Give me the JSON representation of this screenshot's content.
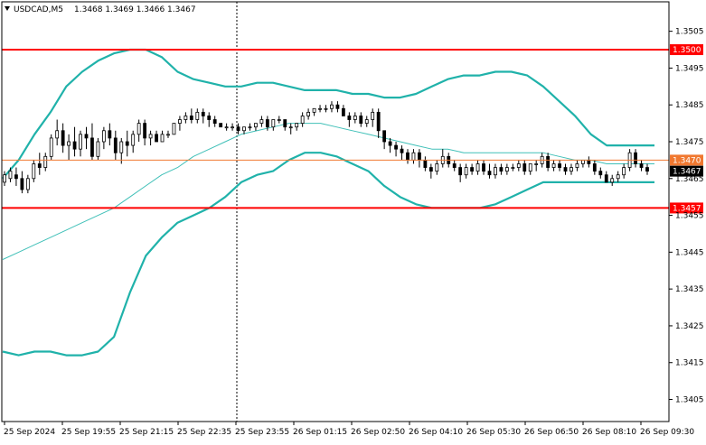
{
  "header": {
    "symbol": "USDCAD,M5",
    "ohlc": "1.3468 1.3469 1.3466 1.3467",
    "arrow_icon": "triangle-down-icon"
  },
  "chart_data": {
    "type": "candlestick",
    "ylim": [
      1.3399,
      1.3513
    ],
    "y_ticks": [
      "1.3505",
      "1.3495",
      "1.3485",
      "1.3475",
      "1.3465",
      "1.3455",
      "1.3445",
      "1.3435",
      "1.3425",
      "1.3415",
      "1.3405"
    ],
    "y_tick_values": [
      1.3505,
      1.3495,
      1.3485,
      1.3475,
      1.3465,
      1.3455,
      1.3445,
      1.3435,
      1.3425,
      1.3415,
      1.3405
    ],
    "x_ticks": [
      "25 Sep 2024",
      "25 Sep 19:55",
      "25 Sep 21:15",
      "25 Sep 22:35",
      "25 Sep 23:55",
      "26 Sep 01:15",
      "26 Sep 02:50",
      "26 Sep 04:10",
      "26 Sep 05:30",
      "26 Sep 06:50",
      "26 Sep 08:10",
      "26 Sep 09:30"
    ],
    "levels": [
      {
        "label": "1.3500",
        "value": 1.35,
        "color": "#ff0000"
      },
      {
        "label": "1.3470",
        "value": 1.347,
        "color": "#f07830"
      },
      {
        "label": "1.3457",
        "value": 1.3457,
        "color": "#ff0000"
      }
    ],
    "current_price": {
      "label": "1.3467",
      "value": 1.3467
    },
    "series": [
      {
        "role": "bollinger-upper",
        "color": "#20b2aa",
        "values": [
          1.3465,
          1.347,
          1.3477,
          1.3483,
          1.349,
          1.3494,
          1.3497,
          1.3499,
          1.35,
          1.35,
          1.3498,
          1.3494,
          1.3492,
          1.3491,
          1.349,
          1.349,
          1.3491,
          1.3491,
          1.349,
          1.3489,
          1.3489,
          1.3489,
          1.3488,
          1.3488,
          1.3487,
          1.3487,
          1.3488,
          1.349,
          1.3492,
          1.3493,
          1.3493,
          1.3494,
          1.3494,
          1.3493,
          1.349,
          1.3486,
          1.3482,
          1.3477,
          1.3474,
          1.3474,
          1.3474,
          1.3474
        ]
      },
      {
        "role": "bollinger-middle",
        "color": "#40c0b8",
        "values": [
          1.3443,
          1.3445,
          1.3447,
          1.3449,
          1.3451,
          1.3453,
          1.3455,
          1.3457,
          1.346,
          1.3463,
          1.3466,
          1.3468,
          1.3471,
          1.3473,
          1.3475,
          1.3477,
          1.3478,
          1.3479,
          1.348,
          1.348,
          1.348,
          1.3479,
          1.3478,
          1.3477,
          1.3476,
          1.3475,
          1.3474,
          1.3473,
          1.3473,
          1.3472,
          1.3472,
          1.3472,
          1.3472,
          1.3472,
          1.3472,
          1.3471,
          1.347,
          1.347,
          1.3469,
          1.3469,
          1.3469,
          1.3469
        ]
      },
      {
        "role": "bollinger-lower",
        "color": "#20b2aa",
        "values": [
          1.3418,
          1.3417,
          1.3418,
          1.3418,
          1.3417,
          1.3417,
          1.3418,
          1.3422,
          1.3434,
          1.3444,
          1.3449,
          1.3453,
          1.3455,
          1.3457,
          1.346,
          1.3464,
          1.3466,
          1.3467,
          1.347,
          1.3472,
          1.3472,
          1.3471,
          1.3469,
          1.3467,
          1.3463,
          1.346,
          1.3458,
          1.3457,
          1.3457,
          1.3457,
          1.3457,
          1.3458,
          1.346,
          1.3462,
          1.3464,
          1.3464,
          1.3464,
          1.3464,
          1.3464,
          1.3464,
          1.3464,
          1.3464
        ]
      }
    ],
    "candles": [
      [
        1.3464,
        1.3467,
        1.3466,
        1.3463
      ],
      [
        1.3465,
        1.3468,
        1.3467,
        1.3464
      ],
      [
        1.3466,
        1.3468,
        1.3465,
        1.3463
      ],
      [
        1.3465,
        1.3467,
        1.3462,
        1.3461
      ],
      [
        1.3462,
        1.3466,
        1.3465,
        1.3461
      ],
      [
        1.3465,
        1.347,
        1.3469,
        1.3464
      ],
      [
        1.3469,
        1.3472,
        1.3468,
        1.3466
      ],
      [
        1.3468,
        1.3472,
        1.3471,
        1.3467
      ],
      [
        1.3471,
        1.3477,
        1.3476,
        1.347
      ],
      [
        1.3476,
        1.3481,
        1.3478,
        1.3474
      ],
      [
        1.3478,
        1.348,
        1.3474,
        1.3472
      ],
      [
        1.3474,
        1.3477,
        1.3475,
        1.347
      ],
      [
        1.3475,
        1.3479,
        1.3473,
        1.3471
      ],
      [
        1.3473,
        1.3478,
        1.3477,
        1.3471
      ],
      [
        1.3477,
        1.3479,
        1.3476,
        1.3473
      ],
      [
        1.3476,
        1.348,
        1.3471,
        1.347
      ],
      [
        1.3471,
        1.3476,
        1.3475,
        1.347
      ],
      [
        1.3475,
        1.3479,
        1.3478,
        1.3473
      ],
      [
        1.3478,
        1.348,
        1.3476,
        1.3474
      ],
      [
        1.3476,
        1.3478,
        1.3472,
        1.347
      ],
      [
        1.3472,
        1.3476,
        1.3475,
        1.3469
      ],
      [
        1.3475,
        1.3478,
        1.3474,
        1.3471
      ],
      [
        1.3474,
        1.3478,
        1.3477,
        1.3472
      ],
      [
        1.3477,
        1.3481,
        1.348,
        1.3475
      ],
      [
        1.348,
        1.3481,
        1.3476,
        1.3474
      ],
      [
        1.3476,
        1.3478,
        1.3477,
        1.3474
      ],
      [
        1.3477,
        1.3478,
        1.3475,
        1.3475
      ],
      [
        1.3475,
        1.3478,
        1.3477,
        1.3475
      ],
      [
        1.3477,
        1.3478,
        1.3477,
        1.3476
      ],
      [
        1.3477,
        1.348,
        1.348,
        1.3477
      ],
      [
        1.348,
        1.3482,
        1.3481,
        1.3478
      ],
      [
        1.3481,
        1.3483,
        1.3482,
        1.348
      ],
      [
        1.3482,
        1.3484,
        1.3481,
        1.348
      ],
      [
        1.3481,
        1.3484,
        1.3483,
        1.348
      ],
      [
        1.3483,
        1.3484,
        1.3482,
        1.348
      ],
      [
        1.3482,
        1.3483,
        1.3481,
        1.3479
      ],
      [
        1.3481,
        1.3482,
        1.348,
        1.3479
      ],
      [
        1.348,
        1.348,
        1.3479,
        1.3479
      ],
      [
        1.3479,
        1.348,
        1.3479,
        1.3478
      ],
      [
        1.3479,
        1.348,
        1.3479,
        1.3478
      ],
      [
        1.3479,
        1.348,
        1.3478,
        1.3477
      ],
      [
        1.3478,
        1.3479,
        1.3479,
        1.3477
      ],
      [
        1.3479,
        1.348,
        1.3479,
        1.3478
      ],
      [
        1.3479,
        1.348,
        1.348,
        1.3478
      ],
      [
        1.348,
        1.3482,
        1.3481,
        1.3479
      ],
      [
        1.3481,
        1.3482,
        1.3479,
        1.3478
      ],
      [
        1.3479,
        1.3481,
        1.3481,
        1.3478
      ],
      [
        1.3481,
        1.3482,
        1.3481,
        1.348
      ],
      [
        1.3481,
        1.3481,
        1.3479,
        1.3478
      ],
      [
        1.3479,
        1.348,
        1.3479,
        1.3477
      ],
      [
        1.3479,
        1.348,
        1.348,
        1.3478
      ],
      [
        1.348,
        1.3483,
        1.3482,
        1.3479
      ],
      [
        1.3482,
        1.3484,
        1.3483,
        1.3481
      ],
      [
        1.3483,
        1.3484,
        1.3484,
        1.3482
      ],
      [
        1.3484,
        1.3485,
        1.3484,
        1.3483
      ],
      [
        1.3484,
        1.3485,
        1.3484,
        1.3483
      ],
      [
        1.3484,
        1.3486,
        1.3485,
        1.3483
      ],
      [
        1.3485,
        1.3486,
        1.3484,
        1.3483
      ],
      [
        1.3484,
        1.3485,
        1.3482,
        1.3482
      ],
      [
        1.3482,
        1.3483,
        1.3481,
        1.3479
      ],
      [
        1.3481,
        1.3483,
        1.3482,
        1.348
      ],
      [
        1.3482,
        1.3483,
        1.348,
        1.3479
      ],
      [
        1.348,
        1.3482,
        1.3481,
        1.3479
      ],
      [
        1.3481,
        1.3484,
        1.3483,
        1.3479
      ],
      [
        1.3483,
        1.3484,
        1.3478,
        1.3476
      ],
      [
        1.3478,
        1.3478,
        1.3475,
        1.3473
      ],
      [
        1.3475,
        1.3476,
        1.3474,
        1.3472
      ],
      [
        1.3474,
        1.3475,
        1.3473,
        1.3471
      ],
      [
        1.3473,
        1.3474,
        1.3472,
        1.347
      ],
      [
        1.3472,
        1.3473,
        1.347,
        1.3469
      ],
      [
        1.347,
        1.3473,
        1.3472,
        1.3469
      ],
      [
        1.3472,
        1.3473,
        1.347,
        1.3468
      ],
      [
        1.347,
        1.3471,
        1.3468,
        1.3467
      ],
      [
        1.3468,
        1.3469,
        1.3467,
        1.3465
      ],
      [
        1.3467,
        1.347,
        1.3469,
        1.3466
      ],
      [
        1.3469,
        1.3473,
        1.3471,
        1.3468
      ],
      [
        1.3471,
        1.3472,
        1.3469,
        1.3468
      ],
      [
        1.3469,
        1.347,
        1.3468,
        1.3467
      ],
      [
        1.3468,
        1.3469,
        1.3466,
        1.3464
      ],
      [
        1.3466,
        1.3469,
        1.3468,
        1.3465
      ],
      [
        1.3468,
        1.3469,
        1.3467,
        1.3466
      ],
      [
        1.3467,
        1.347,
        1.3469,
        1.3466
      ],
      [
        1.3469,
        1.347,
        1.3467,
        1.3466
      ],
      [
        1.3467,
        1.3469,
        1.3466,
        1.3465
      ],
      [
        1.3466,
        1.3469,
        1.3468,
        1.3465
      ],
      [
        1.3468,
        1.3469,
        1.3467,
        1.3466
      ],
      [
        1.3467,
        1.3469,
        1.3468,
        1.3466
      ],
      [
        1.3468,
        1.3469,
        1.3468,
        1.3467
      ],
      [
        1.3468,
        1.347,
        1.3469,
        1.3467
      ],
      [
        1.3469,
        1.347,
        1.3467,
        1.3466
      ],
      [
        1.3467,
        1.3469,
        1.3469,
        1.3466
      ],
      [
        1.3469,
        1.347,
        1.3469,
        1.3467
      ],
      [
        1.3469,
        1.3472,
        1.3471,
        1.3468
      ],
      [
        1.3471,
        1.3472,
        1.3468,
        1.3467
      ],
      [
        1.3468,
        1.347,
        1.3469,
        1.3467
      ],
      [
        1.3469,
        1.347,
        1.3468,
        1.3467
      ],
      [
        1.3468,
        1.3469,
        1.3467,
        1.3466
      ],
      [
        1.3467,
        1.3469,
        1.3468,
        1.3466
      ],
      [
        1.3468,
        1.347,
        1.3469,
        1.3467
      ],
      [
        1.3469,
        1.347,
        1.347,
        1.3468
      ],
      [
        1.347,
        1.3471,
        1.3469,
        1.3468
      ],
      [
        1.3469,
        1.347,
        1.3467,
        1.3466
      ],
      [
        1.3467,
        1.3468,
        1.3466,
        1.3465
      ],
      [
        1.3466,
        1.3467,
        1.3464,
        1.3464
      ],
      [
        1.3464,
        1.3466,
        1.3465,
        1.3463
      ],
      [
        1.3465,
        1.3467,
        1.3466,
        1.3464
      ],
      [
        1.3466,
        1.3469,
        1.3468,
        1.3465
      ],
      [
        1.3468,
        1.3473,
        1.3472,
        1.3467
      ],
      [
        1.3472,
        1.3473,
        1.3469,
        1.3468
      ],
      [
        1.3469,
        1.347,
        1.3468,
        1.3467
      ],
      [
        1.3468,
        1.3469,
        1.3467,
        1.3466
      ]
    ]
  }
}
